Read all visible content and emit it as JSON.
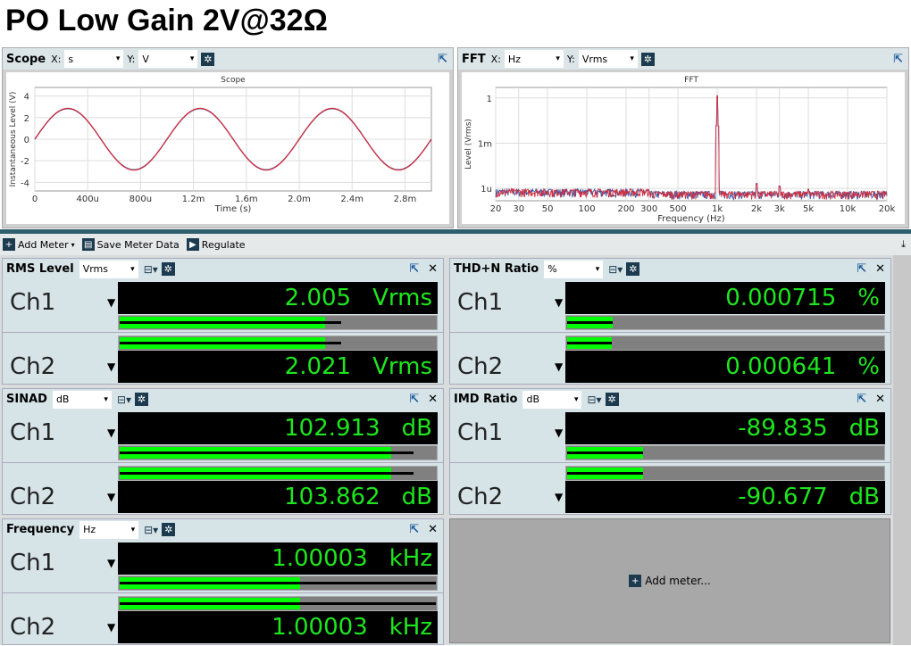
{
  "title": "PO Low Gain 2V@32Ω",
  "scope": {
    "label": "Scope",
    "x_label": "X:",
    "x_unit": "s",
    "y_label": "Y:",
    "y_unit": "V"
  },
  "fft": {
    "label": "FFT",
    "x_label": "X:",
    "x_unit": "Hz",
    "y_label": "Y:",
    "y_unit": "Vrms"
  },
  "toolbar": {
    "add_meter": "Add Meter",
    "save": "Save Meter Data",
    "regulate": "Regulate"
  },
  "chart_data": [
    {
      "type": "line",
      "title": "Scope",
      "xlabel": "Time (s)",
      "ylabel": "Instantaneous Level (V)",
      "xlim": [
        0,
        0.003
      ],
      "ylim": [
        -4.8,
        4.8
      ],
      "xticks": [
        "0",
        "400u",
        "800u",
        "1.2m",
        "1.6m",
        "2.0m",
        "2.4m",
        "2.8m"
      ],
      "yticks": [
        "4",
        "2",
        "0",
        "-2",
        "-4"
      ],
      "grid": true,
      "series": [
        {
          "color": "#3a5aa8",
          "amplitude": 2.83,
          "frequency_hz": 1000
        },
        {
          "color": "#d03040",
          "amplitude": 2.86,
          "frequency_hz": 1000
        }
      ]
    },
    {
      "type": "line",
      "title": "FFT",
      "xlabel": "Frequency (Hz)",
      "ylabel": "Level (Vrms)",
      "x_scale": "log",
      "y_scale": "log",
      "xlim": [
        20,
        20000
      ],
      "ylim": [
        1.5e-07,
        5
      ],
      "xticks": [
        "20",
        "30",
        "50",
        "100",
        "200",
        "300",
        "500",
        "1k",
        "2k",
        "3k",
        "5k",
        "10k",
        "20k"
      ],
      "yticks": [
        "1",
        "1m",
        "1u"
      ],
      "grid": true,
      "noise_floor_vrms": 3e-07,
      "peaks": [
        {
          "f": 1000,
          "v": 1.4
        },
        {
          "f": 2000,
          "v": 2.1e-06
        },
        {
          "f": 3000,
          "v": 1.4e-06
        },
        {
          "f": 5000,
          "v": 9e-07
        }
      ],
      "series_colors": [
        "#3a5aa8",
        "#d03040"
      ]
    }
  ],
  "meters": [
    {
      "title": "RMS Level",
      "unit_sel": "Vrms",
      "ch": [
        {
          "name": "Ch1",
          "value": "2.005",
          "unit": "Vrms",
          "fill": 0.65,
          "peak": 0.7
        },
        {
          "name": "Ch2",
          "value": "2.021",
          "unit": "Vrms",
          "fill": 0.65,
          "peak": 0.7
        }
      ]
    },
    {
      "title": "THD+N Ratio",
      "unit_sel": "%",
      "ch": [
        {
          "name": "Ch1",
          "value": "0.000715",
          "unit": "%",
          "fill": 0.145,
          "peak": 0.145
        },
        {
          "name": "Ch2",
          "value": "0.000641",
          "unit": "%",
          "fill": 0.14,
          "peak": 0.14
        }
      ]
    },
    {
      "title": "SINAD",
      "unit_sel": "dB",
      "ch": [
        {
          "name": "Ch1",
          "value": "102.913",
          "unit": "dB",
          "fill": 0.86,
          "peak": 0.93
        },
        {
          "name": "Ch2",
          "value": "103.862",
          "unit": "dB",
          "fill": 0.86,
          "peak": 0.93
        }
      ]
    },
    {
      "title": "IMD Ratio",
      "unit_sel": "dB",
      "ch": [
        {
          "name": "Ch1",
          "value": "-89.835",
          "unit": "dB",
          "fill": 0.24,
          "peak": 0.24
        },
        {
          "name": "Ch2",
          "value": "-90.677",
          "unit": "dB",
          "fill": 0.24,
          "peak": 0.24
        }
      ]
    },
    {
      "title": "Frequency",
      "unit_sel": "Hz",
      "ch": [
        {
          "name": "Ch1",
          "value": "1.00003",
          "unit": "kHz",
          "fill": 0.57,
          "peak": 1.0
        },
        {
          "name": "Ch2",
          "value": "1.00003",
          "unit": "kHz",
          "fill": 0.57,
          "peak": 1.0
        }
      ]
    }
  ],
  "add_meter_placeholder": "Add meter..."
}
